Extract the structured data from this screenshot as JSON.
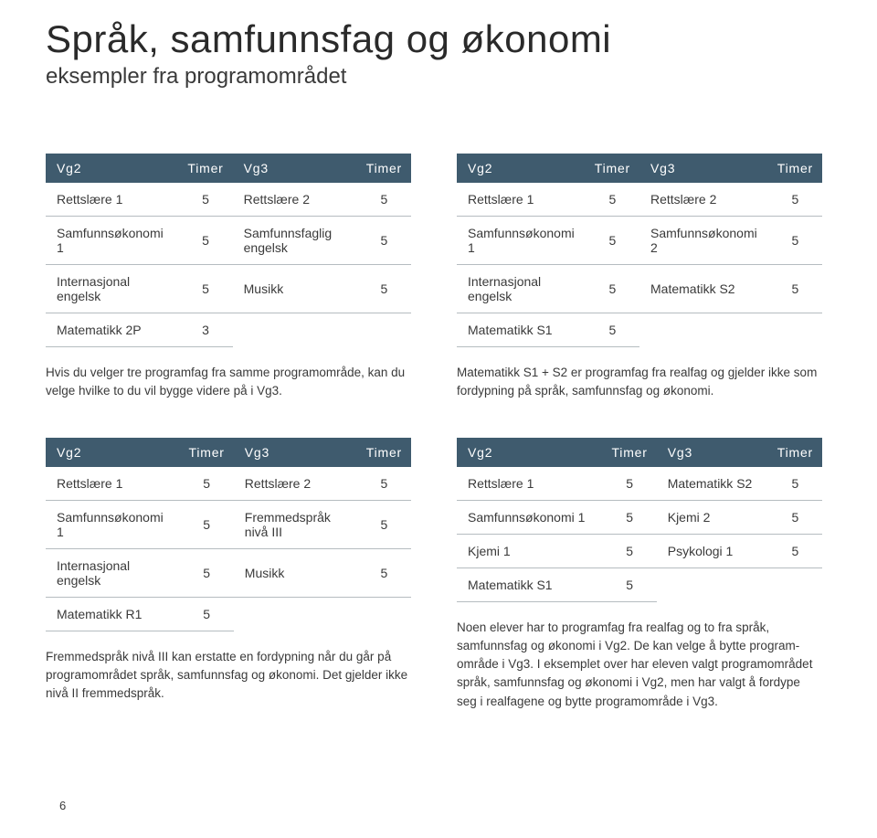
{
  "header": {
    "title": "Språk, samfunnsfag og økonomi",
    "subtitle": "eksempler fra programområdet"
  },
  "columns": {
    "vg2": "Vg2",
    "timer": "Timer",
    "vg3": "Vg3"
  },
  "styling": {
    "page_bg": "#ffffff",
    "header_bg": "#3f5b6e",
    "header_text": "#ffffff",
    "row_border": "#b5bcc0",
    "body_text": "#3a3a3a",
    "title_fontsize": 42,
    "subtitle_fontsize": 24,
    "th_fontsize": 14,
    "td_fontsize": 14,
    "desc_fontsize": 13.5
  },
  "blocks": [
    {
      "rows": [
        {
          "vg2": "Rettslære 1",
          "t2": "5",
          "vg3": "Rettslære 2",
          "t3": "5"
        },
        {
          "vg2": "Samfunnsøkonomi 1",
          "t2": "5",
          "vg3": "Samfunnsfaglig engelsk",
          "t3": "5"
        },
        {
          "vg2": "Internasjonal engelsk",
          "t2": "5",
          "vg3": "Musikk",
          "t3": "5"
        },
        {
          "vg2": "Matematikk 2P",
          "t2": "3",
          "vg3": "",
          "t3": ""
        }
      ],
      "desc": "Hvis du velger tre programfag fra samme programområde, kan du velge hvilke to du vil bygge videre på i Vg3."
    },
    {
      "rows": [
        {
          "vg2": "Rettslære 1",
          "t2": "5",
          "vg3": "Rettslære 2",
          "t3": "5"
        },
        {
          "vg2": "Samfunnsøkonomi 1",
          "t2": "5",
          "vg3": "Samfunnsøkonomi 2",
          "t3": "5"
        },
        {
          "vg2": "Internasjonal engelsk",
          "t2": "5",
          "vg3": "Matematikk S2",
          "t3": "5"
        },
        {
          "vg2": "Matematikk S1",
          "t2": "5",
          "vg3": "",
          "t3": ""
        }
      ],
      "desc": "Matematikk S1 + S2 er programfag fra realfag og gjelder ikke som fordypning på språk, samfunnsfag og økonomi."
    },
    {
      "rows": [
        {
          "vg2": "Rettslære 1",
          "t2": "5",
          "vg3": "Rettslære 2",
          "t3": "5"
        },
        {
          "vg2": "Samfunnsøkonomi 1",
          "t2": "5",
          "vg3": "Fremmedspråk nivå III",
          "t3": "5"
        },
        {
          "vg2": "Internasjonal engelsk",
          "t2": "5",
          "vg3": "Musikk",
          "t3": "5"
        },
        {
          "vg2": "Matematikk R1",
          "t2": "5",
          "vg3": "",
          "t3": ""
        }
      ],
      "desc": "Fremmedspråk nivå III kan erstatte en fordypning når du går på programområdet språk, samfunnsfag og økonomi. Det gjelder ikke nivå II fremmedspråk."
    },
    {
      "rows": [
        {
          "vg2": "Rettslære 1",
          "t2": "5",
          "vg3": "Matematikk S2",
          "t3": "5"
        },
        {
          "vg2": "Samfunnsøkonomi 1",
          "t2": "5",
          "vg3": "Kjemi 2",
          "t3": "5"
        },
        {
          "vg2": "Kjemi 1",
          "t2": "5",
          "vg3": "Psykologi 1",
          "t3": "5"
        },
        {
          "vg2": "Matematikk S1",
          "t2": "5",
          "vg3": "",
          "t3": ""
        }
      ],
      "desc": "Noen elever har to programfag fra realfag og to fra språk, samfunnsfag og økonomi i Vg2. De kan velge å bytte program­område i Vg3. I eksemplet over har eleven valgt programområdet språk, samfunnsfag og økonomi i Vg2, men har valgt å fordype seg i realfagene og bytte programområde i Vg3."
    }
  ],
  "pagenum": "6"
}
